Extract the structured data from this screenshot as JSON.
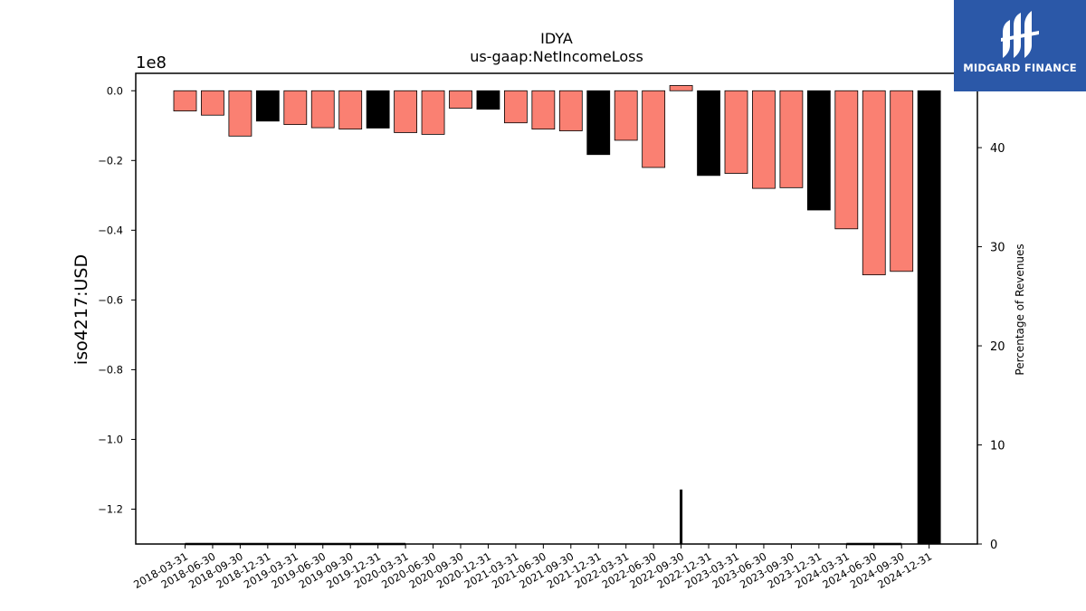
{
  "logo": {
    "text": "MIDGARD FINANCE"
  },
  "chart_data": {
    "type": "bar",
    "title": "IDYA",
    "subtitle": "us-gaap:NetIncomeLoss",
    "ylabel": "iso4217:USD",
    "y_offset_label": "1e8",
    "y2label": "Percentage of Revenues",
    "ylim": [
      -1.3,
      0.05
    ],
    "y_ticks": [
      0.0,
      -0.2,
      -0.4,
      -0.6,
      -0.8,
      -1.0,
      -1.2
    ],
    "y_tick_labels": [
      "0.0",
      "−0.2",
      "−0.4",
      "−0.6",
      "−0.8",
      "−1.0",
      "−1.2"
    ],
    "y2lim": [
      0,
      47.5
    ],
    "y2_ticks": [
      0,
      10,
      20,
      30,
      40
    ],
    "y2_tick_labels": [
      "0",
      "10",
      "20",
      "30",
      "40"
    ],
    "grid": false,
    "categories": [
      "2018-03-31",
      "2018-06-30",
      "2018-09-30",
      "2018-12-31",
      "2019-03-31",
      "2019-06-30",
      "2019-09-30",
      "2019-12-31",
      "2020-03-31",
      "2020-06-30",
      "2020-09-30",
      "2020-12-31",
      "2021-03-31",
      "2021-06-30",
      "2021-09-30",
      "2021-12-31",
      "2022-03-31",
      "2022-06-30",
      "2022-09-30",
      "2022-12-31",
      "2023-03-31",
      "2023-06-30",
      "2023-09-30",
      "2023-12-31",
      "2024-03-31",
      "2024-06-30",
      "2024-09-30",
      "2024-12-31"
    ],
    "series": [
      {
        "values": [
          -0.058,
          -0.07,
          -0.13,
          -0.087,
          -0.097,
          -0.106,
          -0.11,
          -0.107,
          -0.12,
          -0.125,
          -0.05,
          -0.053,
          -0.092,
          -0.11,
          -0.115,
          -0.183,
          -0.142,
          -0.22,
          0.015,
          -0.243,
          -0.237,
          -0.28,
          -0.278,
          -0.342,
          -0.396,
          -0.528,
          -0.518,
          -1.3
        ],
        "colors": [
          "#fa8072",
          "#fa8072",
          "#fa8072",
          "#000000",
          "#fa8072",
          "#fa8072",
          "#fa8072",
          "#000000",
          "#fa8072",
          "#fa8072",
          "#fa8072",
          "#000000",
          "#fa8072",
          "#fa8072",
          "#fa8072",
          "#000000",
          "#fa8072",
          "#fa8072",
          "#fa8072",
          "#000000",
          "#fa8072",
          "#fa8072",
          "#fa8072",
          "#000000",
          "#fa8072",
          "#fa8072",
          "#fa8072",
          "#000000"
        ]
      }
    ],
    "percentage_of_revenues": [
      0,
      0,
      0,
      0,
      0,
      0,
      0,
      0,
      0,
      null,
      null,
      null,
      null,
      null,
      null,
      null,
      null,
      null,
      5.5,
      null,
      null,
      null,
      null,
      null,
      0,
      0,
      0,
      null
    ]
  }
}
